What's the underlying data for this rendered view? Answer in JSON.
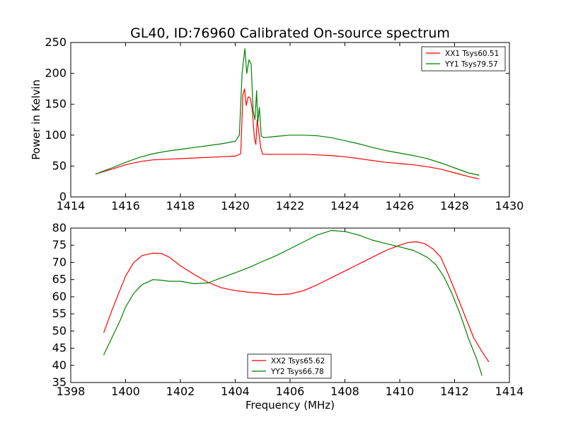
{
  "chart_data": [
    {
      "type": "line",
      "title": "GL40, ID:76960 Calibrated On-source spectrum",
      "xlabel": "",
      "ylabel": "Power in Kelvin",
      "xlim": [
        1414,
        1430
      ],
      "ylim": [
        0,
        250
      ],
      "xticks": [
        "1414",
        "1416",
        "1418",
        "1420",
        "1422",
        "1424",
        "1426",
        "1428",
        "1430"
      ],
      "yticks": [
        "0",
        "50",
        "100",
        "150",
        "200",
        "250"
      ],
      "legend": "top-right",
      "series": [
        {
          "name": "XX1 Tsys60.51",
          "color": "#ff0000",
          "x": [
            1414.9,
            1415.5,
            1416.0,
            1416.5,
            1417.0,
            1417.5,
            1418.0,
            1418.5,
            1419.0,
            1419.5,
            1420.0,
            1420.2,
            1420.28,
            1420.34,
            1420.4,
            1420.47,
            1420.55,
            1420.62,
            1420.7,
            1420.75,
            1420.8,
            1420.86,
            1420.93,
            1421.0,
            1421.5,
            1422.0,
            1422.5,
            1423.0,
            1423.5,
            1424.0,
            1424.5,
            1425.0,
            1425.5,
            1426.0,
            1426.5,
            1427.0,
            1427.5,
            1428.0,
            1428.5,
            1428.9
          ],
          "y": [
            37,
            45,
            52,
            57,
            60,
            61,
            62,
            63,
            64,
            65,
            66,
            70,
            165,
            175,
            148,
            162,
            160,
            142,
            95,
            85,
            125,
            105,
            80,
            69,
            69,
            69,
            69,
            68,
            67,
            65,
            62,
            59,
            56,
            54,
            52,
            49,
            45,
            39,
            33,
            29
          ]
        },
        {
          "name": "YY1 Tsys79.57",
          "color": "#008000",
          "x": [
            1414.9,
            1415.5,
            1416.0,
            1416.5,
            1417.0,
            1417.5,
            1418.0,
            1418.5,
            1419.0,
            1419.5,
            1420.0,
            1420.15,
            1420.25,
            1420.35,
            1420.42,
            1420.5,
            1420.58,
            1420.65,
            1420.72,
            1420.78,
            1420.82,
            1420.88,
            1420.95,
            1421.05,
            1421.5,
            1422.0,
            1422.5,
            1423.0,
            1423.5,
            1424.0,
            1424.5,
            1425.0,
            1425.5,
            1426.0,
            1426.5,
            1427.0,
            1427.5,
            1428.0,
            1428.5,
            1428.9
          ],
          "y": [
            37,
            47,
            56,
            64,
            70,
            74,
            77,
            80,
            83,
            86,
            90,
            100,
            200,
            240,
            200,
            222,
            215,
            140,
            125,
            172,
            120,
            145,
            98,
            96,
            98,
            100,
            100,
            99,
            96,
            91,
            86,
            80,
            75,
            71,
            67,
            62,
            55,
            47,
            39,
            35
          ]
        }
      ]
    },
    {
      "type": "line",
      "title": "",
      "xlabel": "Frequency (MHz)",
      "ylabel": "",
      "xlim": [
        1398,
        1414
      ],
      "ylim": [
        35,
        80
      ],
      "xticks": [
        "1398",
        "1400",
        "1402",
        "1404",
        "1406",
        "1408",
        "1410",
        "1412",
        "1414"
      ],
      "yticks": [
        "35",
        "40",
        "45",
        "50",
        "55",
        "60",
        "65",
        "70",
        "75",
        "80"
      ],
      "legend": "lower-center",
      "series": [
        {
          "name": "XX2 Tsys65.62",
          "color": "#ff0000",
          "x": [
            1399.2,
            1399.5,
            1399.8,
            1400.0,
            1400.3,
            1400.6,
            1401.0,
            1401.3,
            1401.6,
            1402.0,
            1402.5,
            1403.0,
            1403.5,
            1404.0,
            1404.5,
            1405.0,
            1405.5,
            1406.0,
            1406.5,
            1407.0,
            1407.5,
            1408.0,
            1408.5,
            1409.0,
            1409.5,
            1410.0,
            1410.3,
            1410.6,
            1410.9,
            1411.2,
            1411.5,
            1411.8,
            1412.1,
            1412.4,
            1412.7,
            1413.0,
            1413.25
          ],
          "y": [
            49.5,
            56,
            62,
            66,
            70,
            72,
            72.7,
            72.6,
            71.5,
            69,
            66.5,
            64.2,
            62.6,
            61.8,
            61.3,
            61,
            60.6,
            60.8,
            61.8,
            63.5,
            65.5,
            67.5,
            69.5,
            71.5,
            73.5,
            75,
            75.8,
            76,
            75.5,
            74,
            71.5,
            66,
            60,
            54,
            48,
            44,
            41
          ]
        },
        {
          "name": "YY2 Tsys66.78",
          "color": "#008000",
          "x": [
            1399.2,
            1399.5,
            1399.8,
            1400.0,
            1400.3,
            1400.6,
            1401.0,
            1401.3,
            1401.6,
            1402.0,
            1402.5,
            1403.0,
            1403.5,
            1404.0,
            1404.5,
            1405.0,
            1405.5,
            1406.0,
            1406.5,
            1407.0,
            1407.5,
            1408.0,
            1408.5,
            1409.0,
            1409.5,
            1410.0,
            1410.5,
            1411.0,
            1411.3,
            1411.6,
            1411.9,
            1412.2,
            1412.5,
            1412.8,
            1413.0
          ],
          "y": [
            43,
            48,
            53,
            57,
            61,
            63.5,
            65,
            64.8,
            64.5,
            64.5,
            63.8,
            64,
            65.5,
            67,
            68.5,
            70.3,
            72,
            74,
            76,
            78,
            79.3,
            79,
            78,
            76.5,
            75.5,
            74.5,
            73.5,
            71.5,
            69.5,
            66,
            61,
            55,
            48,
            42,
            37
          ]
        }
      ]
    }
  ]
}
